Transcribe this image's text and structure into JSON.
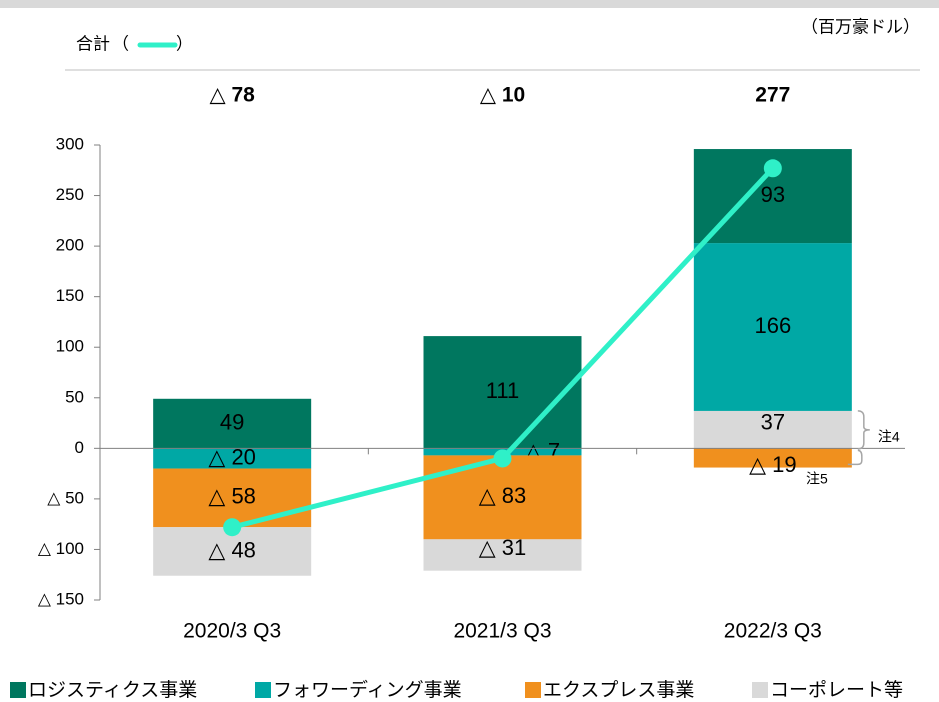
{
  "chart_data": {
    "type": "stacked_bar_line",
    "unit": "（百万豪ドル）",
    "categories": [
      "2020/3 Q3",
      "2021/3 Q3",
      "2022/3 Q3"
    ],
    "series": [
      {
        "name": "ロジスティクス事業",
        "color": "#00775f",
        "values": [
          49,
          111,
          93
        ],
        "value_labels": [
          "49",
          "111",
          "93"
        ]
      },
      {
        "name": "フォワーディング事業",
        "color": "#00a8a5",
        "values": [
          -20,
          -7,
          166
        ],
        "value_labels": [
          "△ 20",
          "△ 7",
          "166"
        ]
      },
      {
        "name": "エクスプレス事業",
        "color": "#f0901e",
        "values": [
          -58,
          -83,
          -19
        ],
        "value_labels": [
          "△ 58",
          "△ 83",
          "△ 19"
        ]
      },
      {
        "name": "コーポレート等",
        "color": "#d9d9d9",
        "values": [
          -48,
          -31,
          37
        ],
        "value_labels": [
          "△ 48",
          "△ 31",
          "37"
        ]
      }
    ],
    "total": {
      "name": "合計",
      "color": "#2ff0c8",
      "values": [
        -78,
        -10,
        277
      ],
      "value_labels": [
        "△ 78",
        "△ 10",
        "277"
      ]
    },
    "legend_brackets": [
      "（",
      "）"
    ],
    "notes": [
      "注4",
      "注5"
    ],
    "ylim": [
      -150,
      300
    ],
    "yticks": [
      {
        "value": -150,
        "label": "△ 150"
      },
      {
        "value": -100,
        "label": "△ 100"
      },
      {
        "value": -50,
        "label": "△ 50"
      },
      0,
      50,
      100,
      150,
      200,
      250,
      300
    ]
  }
}
